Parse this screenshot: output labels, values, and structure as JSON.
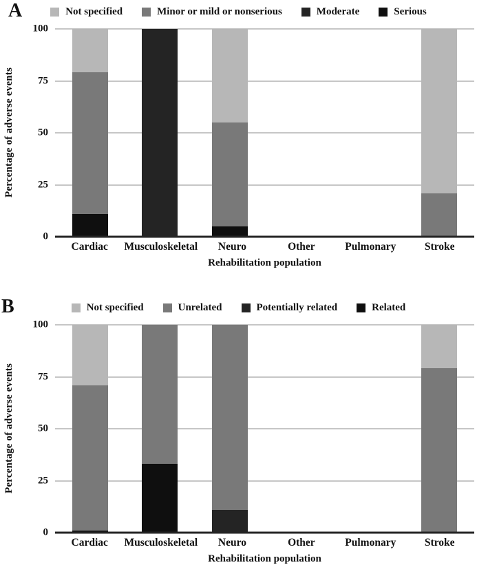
{
  "colors": {
    "not_specified": "#b7b7b7",
    "mid_gray": "#797979",
    "dark_gray": "#242424",
    "black": "#0f0f0f",
    "gridline": "#c6c6c6",
    "baseline": "#242424"
  },
  "chart_data": [
    {
      "type": "bar",
      "panel": "A",
      "stacked": true,
      "title": "",
      "xlabel": "Rehabilitation population",
      "ylabel": "Percentage of adverse events",
      "ylim": [
        0,
        100
      ],
      "yticks": [
        0,
        25,
        50,
        75,
        100
      ],
      "grid": true,
      "legend_position": "top",
      "categories": [
        "Cardiac",
        "Musculoskeletal",
        "Neuro",
        "Other",
        "Pulmonary",
        "Stroke"
      ],
      "legend": [
        {
          "label": "Not specified",
          "color_key": "not_specified"
        },
        {
          "label": "Minor or mild or nonserious",
          "color_key": "mid_gray"
        },
        {
          "label": "Moderate",
          "color_key": "dark_gray"
        },
        {
          "label": "Serious",
          "color_key": "black"
        }
      ],
      "series": [
        {
          "name": "Serious",
          "color_key": "black",
          "values": [
            11,
            0,
            5,
            0,
            0,
            0
          ]
        },
        {
          "name": "Moderate",
          "color_key": "dark_gray",
          "values": [
            0,
            100,
            0,
            0,
            0,
            0
          ]
        },
        {
          "name": "Minor or mild or nonserious",
          "color_key": "mid_gray",
          "values": [
            68,
            0,
            50,
            0,
            0,
            21
          ]
        },
        {
          "name": "Not specified",
          "color_key": "not_specified",
          "values": [
            21,
            0,
            45,
            0,
            0,
            79
          ]
        }
      ]
    },
    {
      "type": "bar",
      "panel": "B",
      "stacked": true,
      "title": "",
      "xlabel": "Rehabilitation population",
      "ylabel": "Percentage of adverse events",
      "ylim": [
        0,
        100
      ],
      "yticks": [
        0,
        25,
        50,
        75,
        100
      ],
      "grid": true,
      "legend_position": "top",
      "categories": [
        "Cardiac",
        "Musculoskeletal",
        "Neuro",
        "Other",
        "Pulmonary",
        "Stroke"
      ],
      "legend": [
        {
          "label": "Not specified",
          "color_key": "not_specified"
        },
        {
          "label": "Unrelated",
          "color_key": "mid_gray"
        },
        {
          "label": "Potentially related",
          "color_key": "dark_gray"
        },
        {
          "label": "Related",
          "color_key": "black"
        }
      ],
      "series": [
        {
          "name": "Related",
          "color_key": "black",
          "values": [
            1,
            33,
            0,
            0,
            0,
            0
          ]
        },
        {
          "name": "Potentially related",
          "color_key": "dark_gray",
          "values": [
            0,
            0,
            11,
            0,
            0,
            0
          ]
        },
        {
          "name": "Unrelated",
          "color_key": "mid_gray",
          "values": [
            70,
            67,
            89,
            0,
            0,
            79
          ]
        },
        {
          "name": "Not specified",
          "color_key": "not_specified",
          "values": [
            29,
            0,
            0,
            0,
            0,
            21
          ]
        }
      ]
    }
  ]
}
